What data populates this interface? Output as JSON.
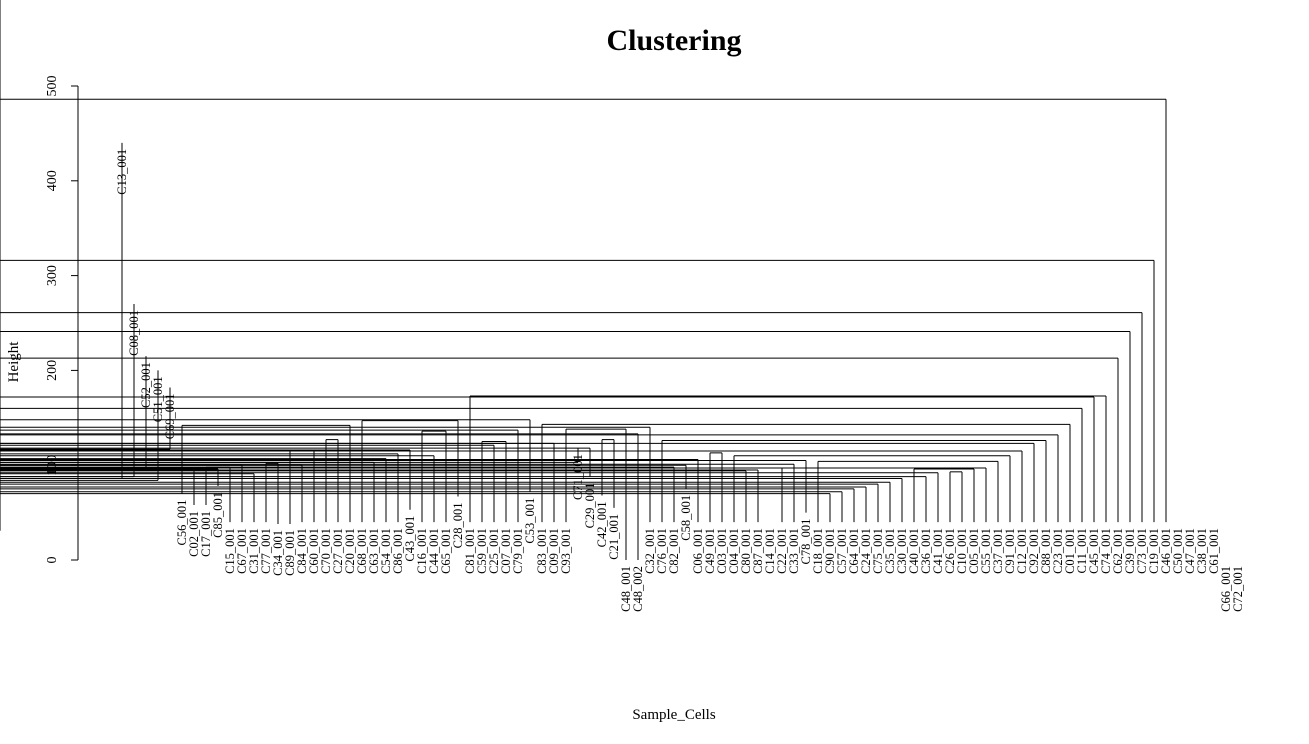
{
  "chart_data": {
    "type": "dendrogram",
    "title": "Clustering",
    "xlabel": "Sample_Cells",
    "ylabel": "Height",
    "ylim": [
      0,
      500
    ],
    "yticks": [
      0,
      100,
      200,
      300,
      400,
      500
    ],
    "leaves": [
      "C13_001",
      "C08_001",
      "C52_001",
      "C51_001",
      "C69_001",
      "C56_001",
      "C02_001",
      "C17_001",
      "C85_001",
      "C15_001",
      "C67_001",
      "C31_001",
      "C77_001",
      "C34_001",
      "C89_001",
      "C84_001",
      "C60_001",
      "C70_001",
      "C27_001",
      "C20_001",
      "C68_001",
      "C63_001",
      "C54_001",
      "C86_001",
      "C43_001",
      "C16_001",
      "C44_001",
      "C65_001",
      "C28_001",
      "C81_001",
      "C59_001",
      "C25_001",
      "C07_001",
      "C79_001",
      "C53_001",
      "C83_001",
      "C09_001",
      "C93_001",
      "C71_001",
      "C29_001",
      "C42_001",
      "C21_001",
      "C48_001",
      "C48_002",
      "C32_001",
      "C76_001",
      "C82_001",
      "C58_001",
      "C06_001",
      "C49_001",
      "C03_001",
      "C04_001",
      "C80_001",
      "C87_001",
      "C14_001",
      "C22_001",
      "C33_001",
      "C78_001",
      "C18_001",
      "C90_001",
      "C57_001",
      "C64_001",
      "C24_001",
      "C75_001",
      "C35_001",
      "C30_001",
      "C40_001",
      "C36_001",
      "C41_001",
      "C26_001",
      "C10_001",
      "C05_001",
      "C55_001",
      "C37_001",
      "C91_001",
      "C12_001",
      "C92_001",
      "C88_001",
      "C23_001",
      "C01_001",
      "C11_001",
      "C45_001",
      "C74_001",
      "C62_001",
      "C39_001",
      "C73_001",
      "C19_001",
      "C46_001",
      "C50_001",
      "C47_001",
      "C38_001",
      "C61_001",
      "C66_001",
      "C72_001"
    ],
    "leaf_heights": [
      440,
      270,
      215,
      200,
      182,
      70,
      58,
      58,
      78,
      40,
      40,
      40,
      40,
      38,
      38,
      40,
      40,
      40,
      40,
      40,
      40,
      40,
      40,
      40,
      53,
      40,
      40,
      40,
      67,
      40,
      40,
      40,
      40,
      40,
      72,
      40,
      40,
      40,
      118,
      88,
      68,
      55,
      0,
      0,
      40,
      40,
      40,
      75,
      40,
      40,
      40,
      40,
      40,
      40,
      40,
      40,
      40,
      50,
      40,
      40,
      40,
      40,
      40,
      40,
      40,
      40,
      40,
      40,
      40,
      40,
      40,
      40,
      40,
      40,
      40,
      40,
      40,
      40,
      40,
      40,
      40,
      40,
      40,
      40,
      40,
      40,
      40,
      40,
      40,
      40,
      40,
      40,
      0,
      0
    ],
    "merges": [
      [
        13,
        14,
        74
      ],
      [
        12,
        -1,
        86
      ],
      [
        11,
        -2,
        88
      ],
      [
        10,
        -3,
        96
      ],
      [
        9,
        -4,
        84
      ],
      [
        -5,
        8,
        117
      ],
      [
        17,
        18,
        89
      ],
      [
        16,
        -7,
        97
      ],
      [
        19,
        20,
        85
      ],
      [
        -9,
        21,
        96
      ],
      [
        -8,
        -10,
        98
      ],
      [
        23,
        24,
        84
      ],
      [
        22,
        -12,
        91
      ],
      [
        15,
        -11,
        100
      ],
      [
        -13,
        -14,
        102
      ],
      [
        26,
        27,
        81
      ],
      [
        25,
        -16,
        100
      ],
      [
        -15,
        -17,
        116
      ],
      [
        6,
        7,
        99
      ],
      [
        -19,
        -18,
        127
      ],
      [
        -20,
        -6,
        142
      ],
      [
        32,
        33,
        98
      ],
      [
        31,
        -22,
        103
      ],
      [
        30,
        -23,
        107
      ],
      [
        29,
        -24,
        112
      ],
      [
        28,
        -25,
        116
      ],
      [
        36,
        37,
        89
      ],
      [
        35,
        -27,
        110
      ],
      [
        -26,
        -28,
        136
      ],
      [
        -21,
        -29,
        147
      ],
      [
        42,
        43,
        40
      ],
      [
        45,
        46,
        119
      ],
      [
        44,
        -32,
        121
      ],
      [
        -31,
        -33,
        125
      ],
      [
        41,
        -34,
        137
      ],
      [
        40,
        -35,
        148
      ],
      [
        51,
        52,
        114
      ],
      [
        50,
        -37,
        123
      ],
      [
        55,
        56,
        99
      ],
      [
        54,
        -39,
        103
      ],
      [
        53,
        -40,
        118
      ],
      [
        -41,
        -42,
        127
      ],
      [
        -38,
        -43,
        138
      ],
      [
        49,
        -44,
        133
      ],
      [
        48,
        -45,
        140
      ],
      [
        58,
        59,
        104
      ],
      [
        64,
        65,
        96
      ],
      [
        63,
        -47,
        98
      ],
      [
        62,
        -48,
        100
      ],
      [
        66,
        67,
        101
      ],
      [
        61,
        -49,
        106
      ],
      [
        -50,
        -51,
        113
      ],
      [
        72,
        73,
        91
      ],
      [
        71,
        -53,
        94
      ],
      [
        70,
        -54,
        95
      ],
      [
        75,
        76,
        96
      ],
      [
        74,
        -56,
        97
      ],
      [
        69,
        -57,
        101
      ],
      [
        68,
        -58,
        105
      ],
      [
        85,
        86,
        67
      ],
      [
        84,
        -60,
        70
      ],
      [
        83,
        -61,
        72
      ],
      [
        82,
        -62,
        75
      ],
      [
        81,
        -63,
        77
      ],
      [
        80,
        -64,
        80
      ],
      [
        79,
        -65,
        82
      ],
      [
        78,
        -66,
        86
      ],
      [
        90,
        91,
        83
      ],
      [
        89,
        -68,
        88
      ],
      [
        88,
        -69,
        92
      ],
      [
        92,
        93,
        31
      ],
      [
        -70,
        -71,
        93
      ],
      [
        -67,
        -72,
        96
      ],
      [
        77,
        -73,
        97
      ],
      [
        -59,
        -74,
        104
      ],
      [
        -52,
        -75,
        110
      ],
      [
        60,
        -76,
        115
      ],
      [
        57,
        -77,
        123
      ],
      [
        -46,
        -78,
        126
      ],
      [
        47,
        -79,
        132
      ],
      [
        -36,
        -80,
        143
      ],
      [
        39,
        -81,
        160
      ],
      [
        38,
        -82,
        172
      ],
      [
        -30,
        -83,
        173
      ],
      [
        4,
        -84,
        213
      ],
      [
        3,
        -85,
        241
      ],
      [
        2,
        -86,
        261
      ],
      [
        1,
        -87,
        316
      ],
      [
        0,
        -88,
        486
      ]
    ]
  }
}
